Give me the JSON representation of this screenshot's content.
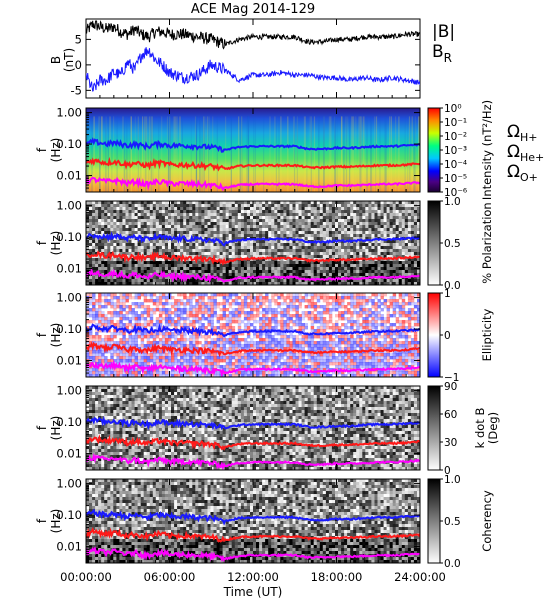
{
  "title": "ACE Mag 2014-129",
  "xlabel": "Time (UT)",
  "x_tick_labels": [
    "00:00:00",
    "06:00:00",
    "12:00:00",
    "18:00:00",
    "24:00:00"
  ],
  "colors": {
    "B_magnitude": "#000000",
    "B_R": "#1a1aff",
    "omega_H": "#1a1aff",
    "omega_He": "#ff1a1a",
    "omega_O": "#ff00ff"
  },
  "legend": {
    "B_magnitude": "|B|",
    "B_R": "B",
    "B_R_sub": "R",
    "omega_H": "Ω",
    "omega_H_sub": "H+",
    "omega_He": "Ω",
    "omega_He_sub": "He+",
    "omega_O": "Ω",
    "omega_O_sub": "O+"
  },
  "chart_data": [
    {
      "type": "line",
      "panel": "field",
      "ylabel": "B",
      "ylabel_unit": "(nT)",
      "x_range_hours": [
        0,
        24
      ],
      "ylim": [
        -6.5,
        9
      ],
      "y_tick_labels": [
        "5",
        "0",
        "-5"
      ],
      "y_ticks": [
        5,
        0,
        -5
      ],
      "series": [
        {
          "key": "B_magnitude",
          "name": "|B|",
          "x": [
            0,
            0.5,
            1,
            1.5,
            2,
            2.5,
            3,
            3.5,
            4,
            4.5,
            5,
            5.5,
            6,
            7,
            8,
            9,
            10,
            11,
            12,
            13,
            14,
            15,
            16,
            17,
            18,
            19,
            20,
            21,
            22,
            23,
            24
          ],
          "values": [
            6.5,
            8.0,
            7.5,
            7.0,
            7.5,
            6.5,
            6.0,
            7.0,
            6.0,
            5.5,
            6.5,
            6.5,
            6.0,
            6.0,
            5.5,
            5.0,
            4.0,
            5.0,
            5.5,
            5.5,
            5.5,
            5.5,
            4.5,
            4.5,
            5.0,
            5.0,
            5.5,
            5.5,
            5.5,
            6.0,
            6.0
          ]
        },
        {
          "key": "B_R",
          "name": "B_R",
          "x": [
            0,
            0.5,
            1,
            1.5,
            2,
            2.5,
            3,
            3.5,
            4,
            4.5,
            5,
            5.5,
            6,
            7,
            8,
            9,
            10,
            11,
            12,
            13,
            14,
            15,
            16,
            17,
            18,
            19,
            20,
            21,
            22,
            23,
            24
          ],
          "values": [
            -2.0,
            -5.0,
            -3.0,
            -3.0,
            -1.5,
            -2.0,
            0.5,
            -1.0,
            2.0,
            3.0,
            1.0,
            0.0,
            -1.5,
            -2.5,
            -2.0,
            0.0,
            -1.0,
            -3.0,
            -2.0,
            -2.0,
            -1.5,
            -2.0,
            -2.0,
            -2.5,
            -2.5,
            -3.0,
            -2.5,
            -3.0,
            -2.5,
            -3.0,
            -3.5
          ]
        }
      ]
    },
    {
      "type": "heatmap",
      "panel": "intensity",
      "ylabel": "f",
      "ylabel_unit": "(Hz)",
      "y_tick_labels": [
        "1.00",
        "0.10",
        "0.01"
      ],
      "colorbar_label": "Intensity (nT²/Hz)",
      "colorbar_ticks": [
        "10⁰",
        "10⁻¹",
        "10⁻²",
        "10⁻³",
        "10⁻⁴",
        "10⁻⁵",
        "10⁻⁶"
      ],
      "colormap": "rainbow"
    },
    {
      "type": "heatmap",
      "panel": "polarization",
      "ylabel": "f",
      "ylabel_unit": "(Hz)",
      "y_tick_labels": [
        "1.00",
        "0.10",
        "0.01"
      ],
      "colorbar_label": "% Polarization",
      "colorbar_ticks": [
        "1.0",
        "0.5",
        "0.0"
      ],
      "colormap": "gray"
    },
    {
      "type": "heatmap",
      "panel": "ellipticity",
      "ylabel": "f",
      "ylabel_unit": "(Hz)",
      "y_tick_labels": [
        "1.00",
        "0.10",
        "0.01"
      ],
      "colorbar_label": "Ellipticity",
      "colorbar_ticks": [
        "1",
        "0",
        "−1"
      ],
      "colormap": "bwr"
    },
    {
      "type": "heatmap",
      "panel": "kdotb",
      "ylabel": "f",
      "ylabel_unit": "(Hz)",
      "y_tick_labels": [
        "1.00",
        "0.10",
        "0.01"
      ],
      "colorbar_label": "k dot B",
      "colorbar_label2": "(Deg)",
      "colorbar_ticks": [
        "90",
        "60",
        "30",
        "0"
      ],
      "colormap": "gray"
    },
    {
      "type": "heatmap",
      "panel": "coherency",
      "ylabel": "f",
      "ylabel_unit": "(Hz)",
      "y_tick_labels": [
        "1.00",
        "0.10",
        "0.01"
      ],
      "colorbar_label": "Coherency",
      "colorbar_ticks": [
        "1.0",
        "0.5",
        "0.0"
      ],
      "colormap": "gray"
    }
  ],
  "gyrofrequency_overlays": {
    "x": [
      0,
      0.5,
      1,
      1.5,
      2,
      2.5,
      3,
      3.5,
      4,
      4.5,
      5,
      5.5,
      6,
      7,
      8,
      9,
      10,
      11,
      12,
      13,
      14,
      15,
      16,
      17,
      18,
      19,
      20,
      21,
      22,
      23,
      24
    ],
    "omega_H": [
      0.1,
      0.12,
      0.11,
      0.1,
      0.11,
      0.1,
      0.09,
      0.1,
      0.09,
      0.085,
      0.1,
      0.1,
      0.09,
      0.09,
      0.085,
      0.08,
      0.065,
      0.08,
      0.085,
      0.085,
      0.085,
      0.085,
      0.07,
      0.07,
      0.075,
      0.075,
      0.08,
      0.085,
      0.085,
      0.09,
      0.095
    ],
    "omega_He": [
      0.025,
      0.03,
      0.028,
      0.025,
      0.028,
      0.025,
      0.022,
      0.025,
      0.022,
      0.021,
      0.025,
      0.025,
      0.022,
      0.022,
      0.021,
      0.02,
      0.016,
      0.02,
      0.021,
      0.021,
      0.021,
      0.021,
      0.018,
      0.018,
      0.019,
      0.019,
      0.02,
      0.021,
      0.021,
      0.022,
      0.024
    ],
    "omega_O": [
      0.0065,
      0.0075,
      0.007,
      0.0065,
      0.007,
      0.0065,
      0.0056,
      0.0065,
      0.0056,
      0.0053,
      0.0063,
      0.0063,
      0.0056,
      0.0056,
      0.0053,
      0.005,
      0.004,
      0.005,
      0.0053,
      0.0053,
      0.0053,
      0.0053,
      0.0045,
      0.0045,
      0.0048,
      0.0048,
      0.005,
      0.0053,
      0.0053,
      0.0056,
      0.006
    ]
  }
}
